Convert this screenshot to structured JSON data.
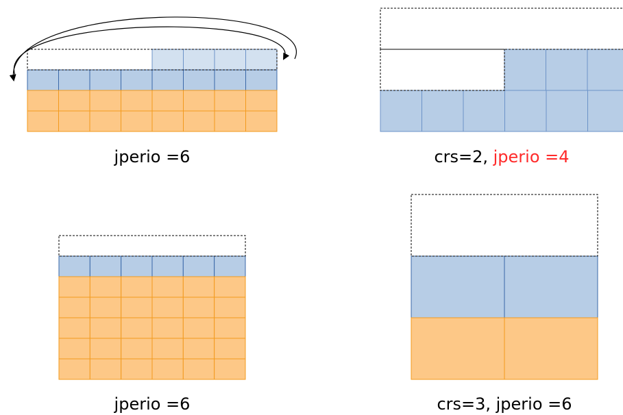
{
  "colors": {
    "blue": "#b7cde6",
    "blue_light": "#d3e1f0",
    "blue_stroke": "#3a68a8",
    "blue_stroke_light": "#6c93c8",
    "orange": "#fdc887",
    "orange_stroke": "#f29a1e",
    "dashed": "#000000",
    "red": "#ff2a2a"
  },
  "panels": [
    {
      "id": "panel-1",
      "caption": "jperio =6"
    },
    {
      "id": "panel-2",
      "caption_part1": "crs=2, ",
      "caption_part2": "jperio =4"
    },
    {
      "id": "panel-3",
      "caption": "jperio =6"
    },
    {
      "id": "panel-4",
      "caption": "crs=3, jperio =6"
    }
  ]
}
